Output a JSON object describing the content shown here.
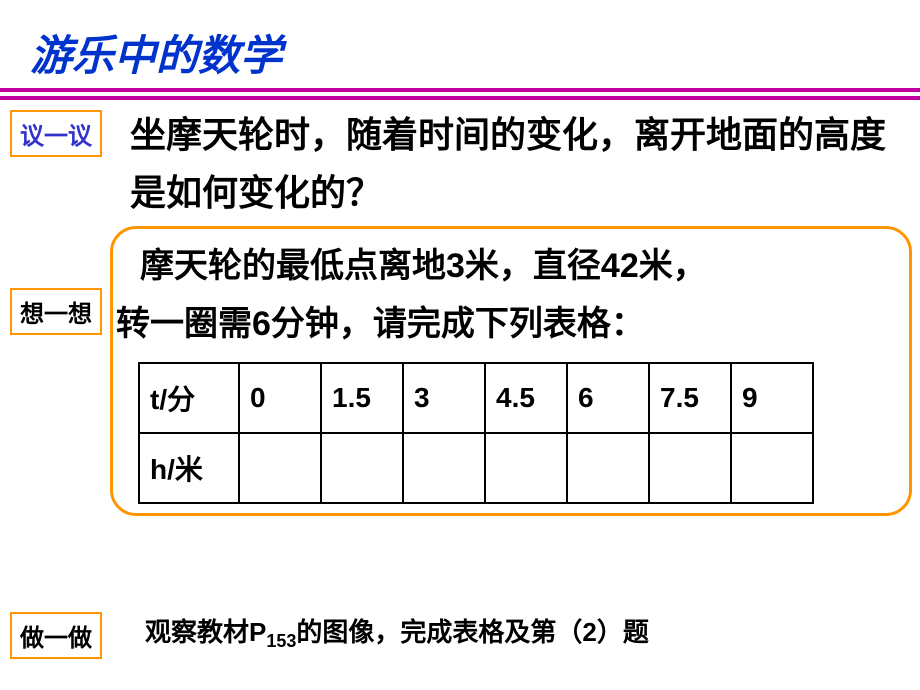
{
  "title": "游乐中的数学",
  "labels": {
    "discuss": "议一议",
    "think": "想一想",
    "do": "做一做"
  },
  "question": "坐摩天轮时，随着时间的变化，离开地面的高度是如何变化的？",
  "think_text_line1": "摩天轮的最低点离地3米，直径42米，",
  "think_text_line2": "转一圈需6分钟，请完成下列表格：",
  "table": {
    "row1_header": "t/分",
    "row1": [
      "0",
      "1.5",
      "3",
      "4.5",
      "6",
      "7.5",
      "9"
    ],
    "row2_header": "h/米",
    "row2": [
      "",
      "",
      "",
      "",
      "",
      "",
      ""
    ]
  },
  "footer_pre": "观察教材P",
  "footer_sub": "153",
  "footer_post": "的图像，完成表格及第（2）题",
  "colors": {
    "title_color": "#0033cc",
    "hr_color": "#c400a0",
    "box_border": "#ff9500",
    "label1_color": "#3333cc"
  }
}
